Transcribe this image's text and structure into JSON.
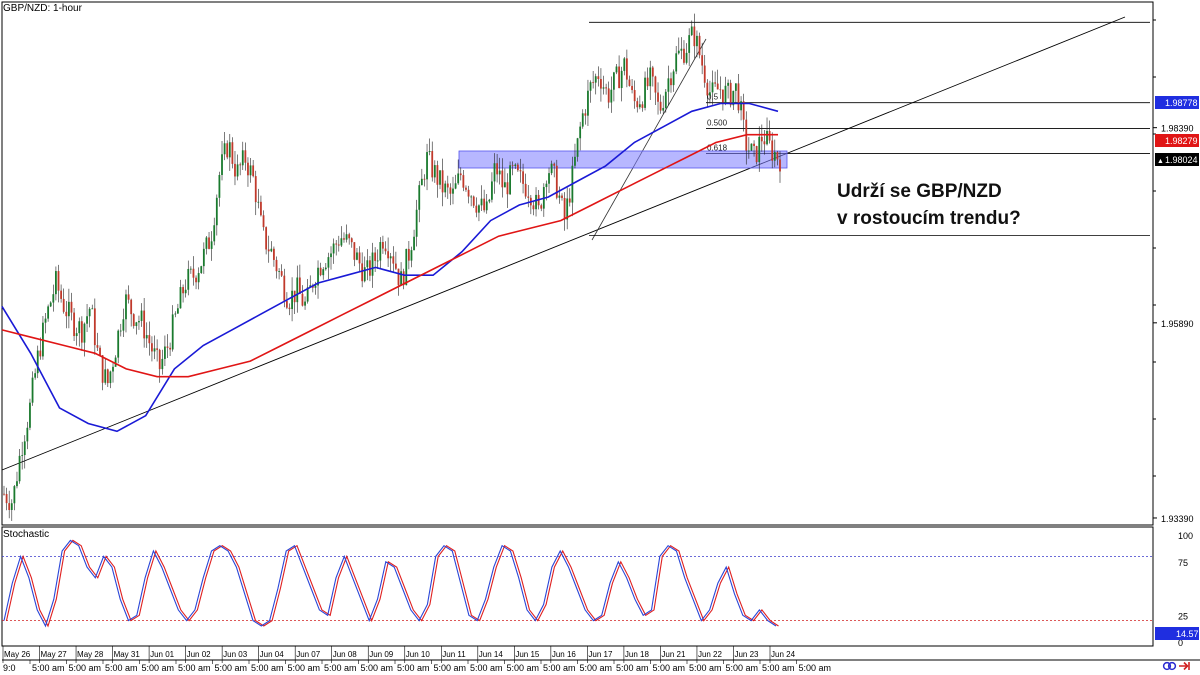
{
  "window": {
    "title": "GBP/NZD: 1-hour",
    "sub_title": "Stochastic"
  },
  "annotation": {
    "line1": "Udrží se GBP/NZD",
    "line2": "v rostoucím trendu?"
  },
  "colors": {
    "up_candle": "#1a7a2e",
    "down_candle": "#c0392b",
    "ma_fast": "#1a1ad6",
    "ma_slow": "#e01515",
    "zone": "#7b7bff",
    "stoch_main": "#2a46d8",
    "stoch_signal": "#e02020",
    "label_blue": "#1f2ee0",
    "label_red": "#e01515",
    "label_black": "#000000"
  },
  "chart_data": {
    "type": "candlestick",
    "title": "GBP/NZD: 1-hour",
    "y_ticks": [
      "1.98390",
      "1.95890",
      "1.93390"
    ],
    "price_labels": [
      {
        "text": "1.98778",
        "style": "blue"
      },
      {
        "text": "1.98279",
        "style": "red"
      },
      {
        "text": "1.98024",
        "style": "black"
      }
    ],
    "x_ticks": [
      "May 26",
      "May 27",
      "May 28",
      "May 31",
      "Jun 01",
      "Jun 02",
      "Jun 03",
      "Jun 04",
      "Jun 07",
      "Jun 08",
      "Jun 09",
      "Jun 10",
      "Jun 11",
      "Jun 14",
      "Jun 15",
      "Jun 16",
      "Jun 17",
      "Jun 18",
      "Jun 21",
      "Jun 22",
      "Jun 23",
      "Jun 24"
    ],
    "x_subtick": "5:00 am",
    "x_first_label": "9:0",
    "fib_levels": [
      {
        "label": "0.5",
        "value": 1.9871
      },
      {
        "label": "0.500",
        "value": 1.9838
      },
      {
        "label": "0.618",
        "value": 1.9806
      }
    ],
    "horizontal_levels": [
      1.9974,
      1.9871,
      1.9838,
      1.9806,
      1.9701
    ],
    "price_path": [
      1.937,
      1.936,
      1.943,
      1.948,
      1.955,
      1.96,
      1.964,
      1.961,
      1.959,
      1.958,
      1.961,
      1.954,
      1.951,
      1.956,
      1.962,
      1.96,
      1.959,
      1.956,
      1.953,
      1.956,
      1.96,
      1.964,
      1.965,
      1.967,
      1.97,
      1.978,
      1.982,
      1.978,
      1.98,
      1.977,
      1.97,
      1.968,
      1.965,
      1.962,
      1.963,
      1.961,
      1.965,
      1.967,
      1.968,
      1.97,
      1.969,
      1.967,
      1.965,
      1.967,
      1.97,
      1.968,
      1.964,
      1.968,
      1.974,
      1.98,
      1.978,
      1.976,
      1.975,
      1.978,
      1.976,
      1.974,
      1.973,
      1.979,
      1.976,
      1.978,
      1.977,
      1.976,
      1.973,
      1.979,
      1.977,
      1.972,
      1.978,
      1.985,
      1.989,
      1.991,
      1.988,
      1.99,
      1.992,
      1.987,
      1.988,
      1.99,
      1.986,
      1.99,
      1.993,
      1.994,
      1.996,
      1.992,
      1.988,
      1.989,
      1.988,
      1.989,
      1.982,
      1.98,
      1.983,
      1.981,
      1.98
    ],
    "ma_fast": [
      1.961,
      1.955,
      1.948,
      1.946,
      1.945,
      1.947,
      1.953,
      1.956,
      1.958,
      1.96,
      1.962,
      1.964,
      1.965,
      1.966,
      1.965,
      1.965,
      1.968,
      1.972,
      1.974,
      1.975,
      1.977,
      1.979,
      1.982,
      1.984,
      1.986,
      1.987,
      1.987,
      1.986
    ],
    "ma_slow": [
      1.958,
      1.957,
      1.956,
      1.955,
      1.953,
      1.952,
      1.952,
      1.953,
      1.954,
      1.956,
      1.958,
      1.96,
      1.962,
      1.964,
      1.966,
      1.968,
      1.97,
      1.971,
      1.972,
      1.974,
      1.976,
      1.978,
      1.98,
      1.982,
      1.983,
      1.983
    ],
    "y_range": [
      1.933,
      2.0
    ],
    "stochastic": {
      "levels": [
        "100",
        "75",
        "25",
        "0"
      ],
      "overbought": 80,
      "oversold": 20,
      "current_label": "14.57",
      "values": [
        20,
        55,
        80,
        60,
        30,
        15,
        40,
        85,
        95,
        90,
        70,
        60,
        80,
        70,
        40,
        20,
        25,
        60,
        85,
        70,
        50,
        30,
        20,
        30,
        60,
        85,
        90,
        85,
        70,
        45,
        20,
        15,
        20,
        50,
        85,
        90,
        70,
        50,
        30,
        25,
        60,
        80,
        60,
        40,
        20,
        40,
        75,
        70,
        50,
        30,
        20,
        35,
        80,
        90,
        85,
        55,
        25,
        20,
        40,
        70,
        90,
        85,
        60,
        30,
        20,
        35,
        70,
        85,
        70,
        50,
        30,
        20,
        25,
        55,
        75,
        60,
        40,
        25,
        30,
        80,
        90,
        85,
        60,
        40,
        20,
        30,
        55,
        70,
        45,
        25,
        20,
        30,
        20,
        15
      ]
    }
  }
}
